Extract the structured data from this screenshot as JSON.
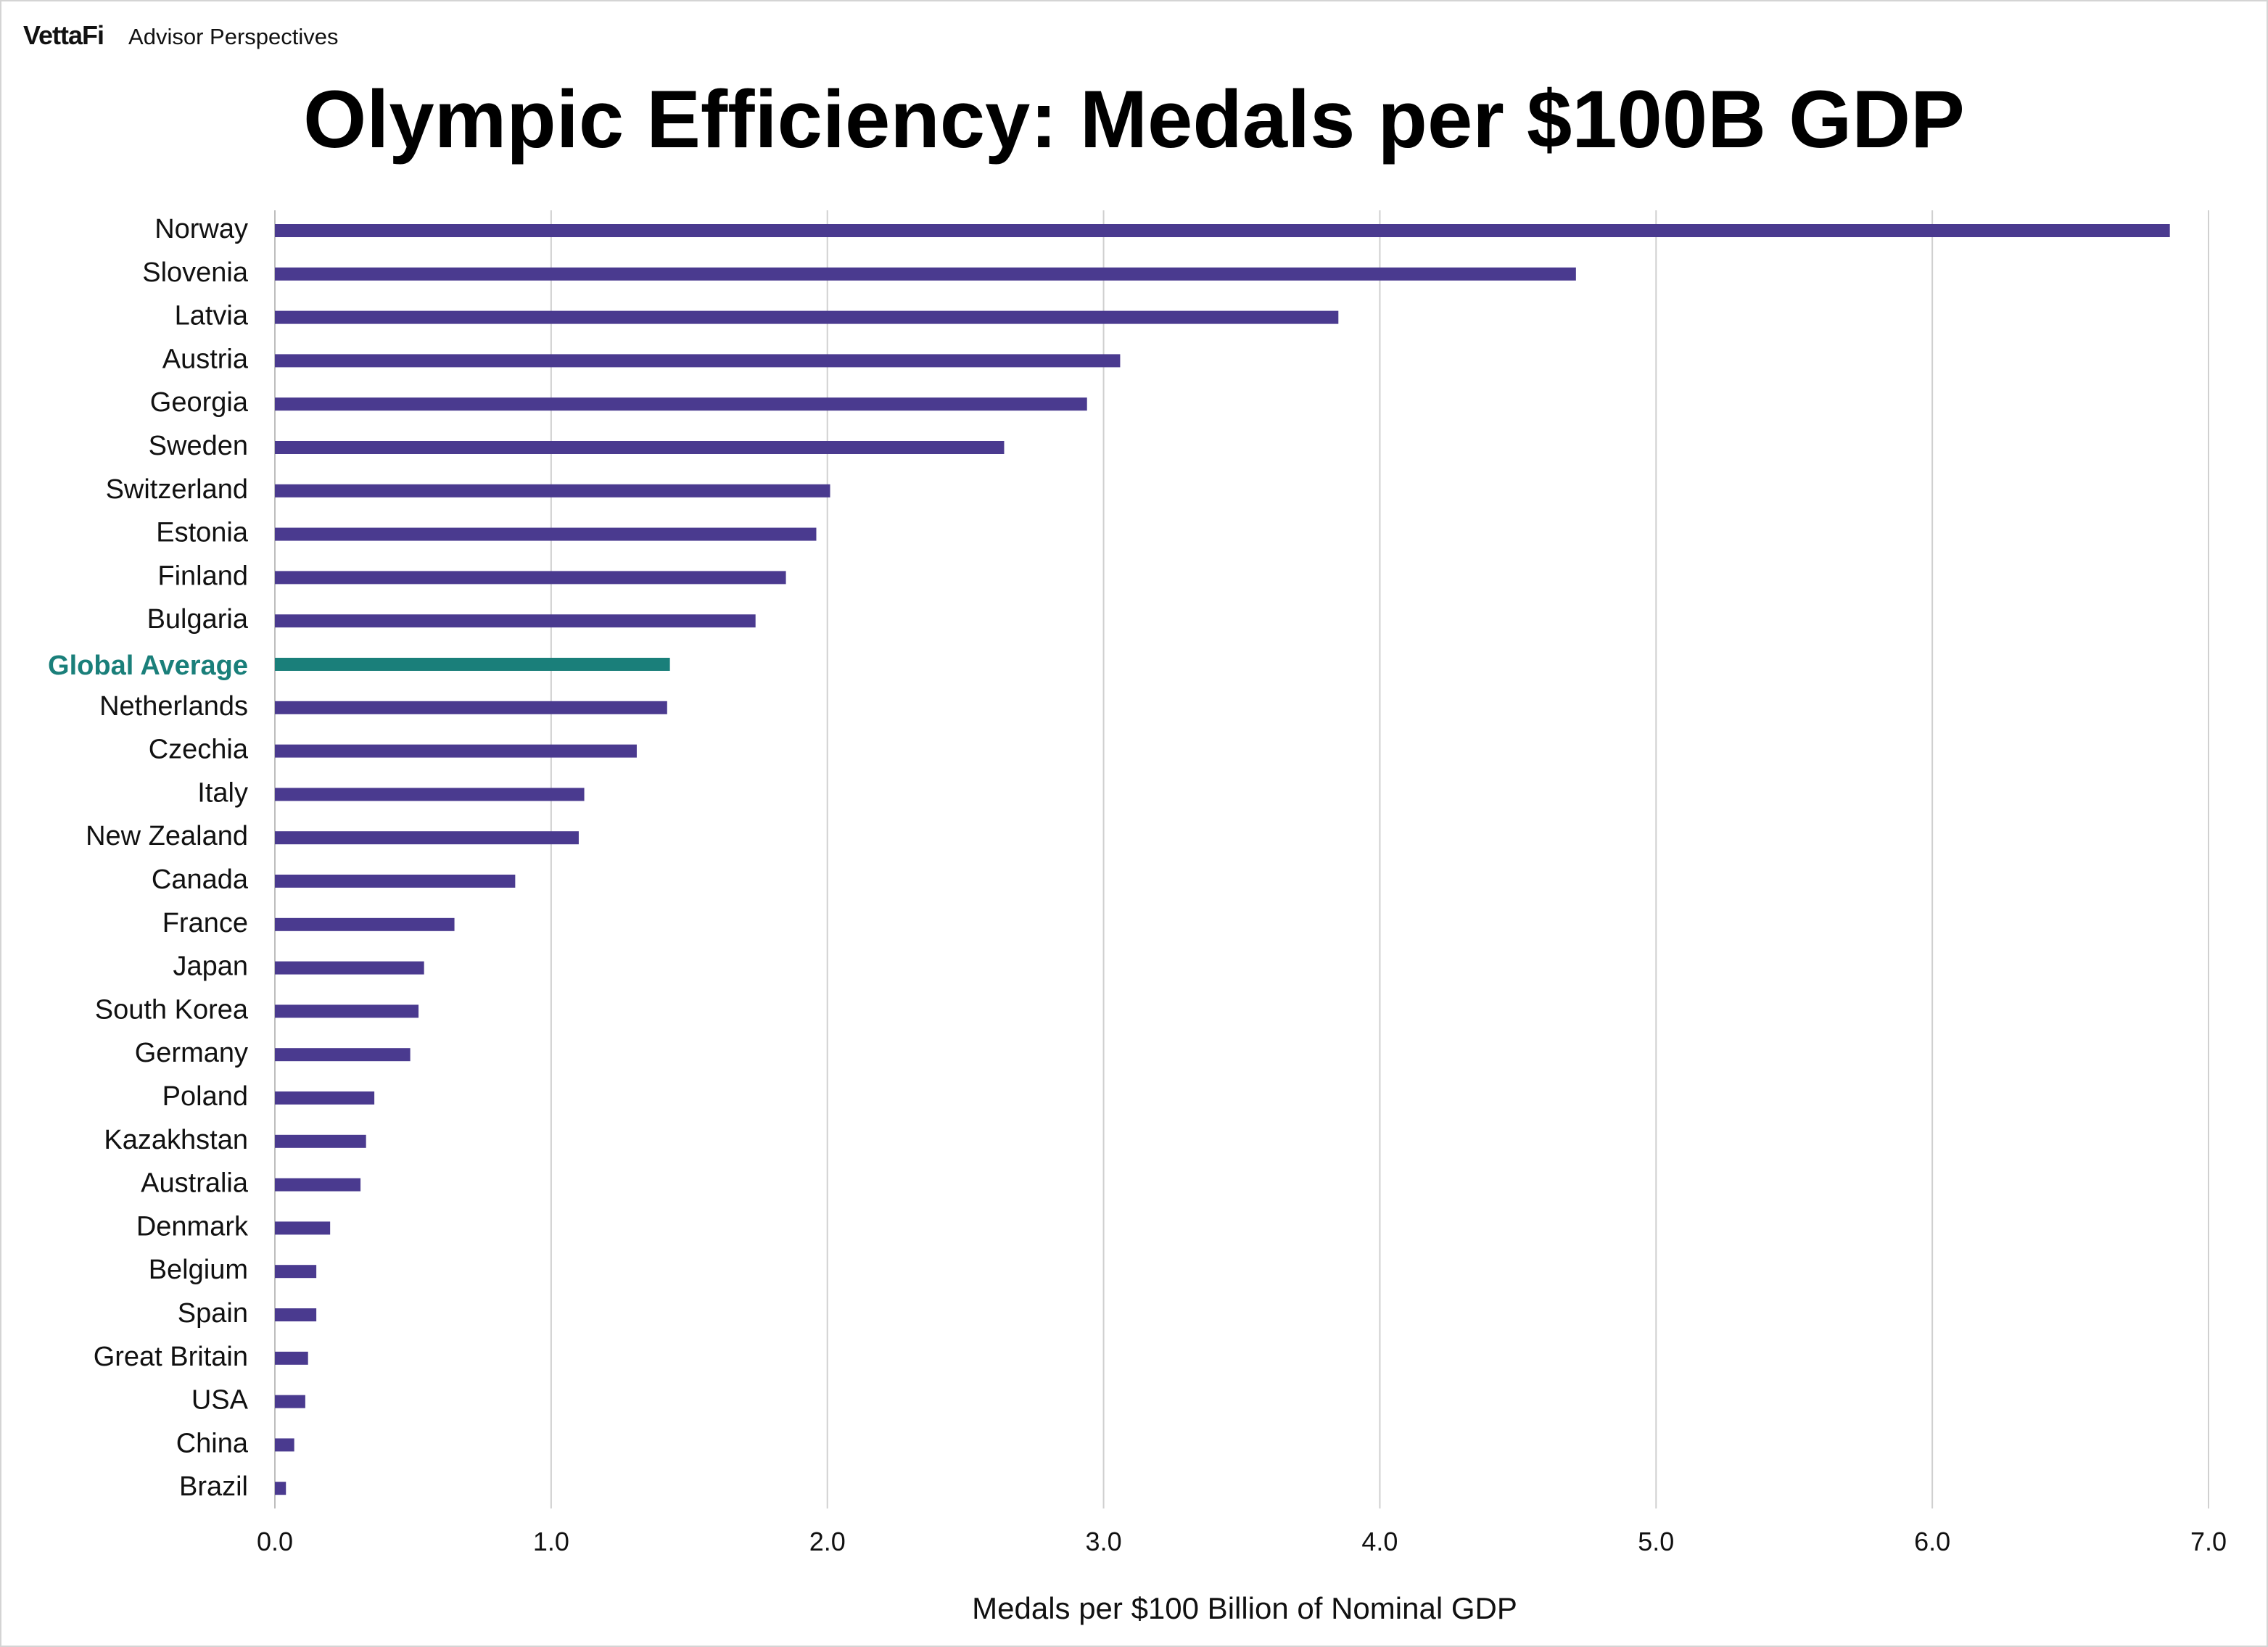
{
  "brand": {
    "logo": "VettaFi",
    "subtitle": "Advisor Perspectives"
  },
  "colors": {
    "bar": "#4a3a8f",
    "highlight": "#1a7f7a",
    "grid": "#d0d0d0"
  },
  "chart_data": {
    "type": "bar",
    "orientation": "horizontal",
    "title": "Olympic Efficiency: Medals per $100B GDP",
    "xlabel": "Medals per $100 Billion of Nominal GDP",
    "ylabel": "",
    "xlim": [
      0,
      7
    ],
    "xticks": [
      "0.0",
      "1.0",
      "2.0",
      "3.0",
      "4.0",
      "5.0",
      "6.0",
      "7.0"
    ],
    "grid": "vertical",
    "highlight_category": "Global Average",
    "categories": [
      "Norway",
      "Slovenia",
      "Latvia",
      "Austria",
      "Georgia",
      "Sweden",
      "Switzerland",
      "Estonia",
      "Finland",
      "Bulgaria",
      "Global Average",
      "Netherlands",
      "Czechia",
      "Italy",
      "New Zealand",
      "Canada",
      "France",
      "Japan",
      "South Korea",
      "Germany",
      "Poland",
      "Kazakhstan",
      "Australia",
      "Denmark",
      "Belgium",
      "Spain",
      "Great Britain",
      "USA",
      "China",
      "Brazil"
    ],
    "values": [
      6.86,
      4.71,
      3.85,
      3.06,
      2.94,
      2.64,
      2.01,
      1.96,
      1.85,
      1.74,
      1.43,
      1.42,
      1.31,
      1.12,
      1.1,
      0.87,
      0.65,
      0.54,
      0.52,
      0.49,
      0.36,
      0.33,
      0.31,
      0.2,
      0.15,
      0.15,
      0.12,
      0.11,
      0.07,
      0.04
    ]
  }
}
